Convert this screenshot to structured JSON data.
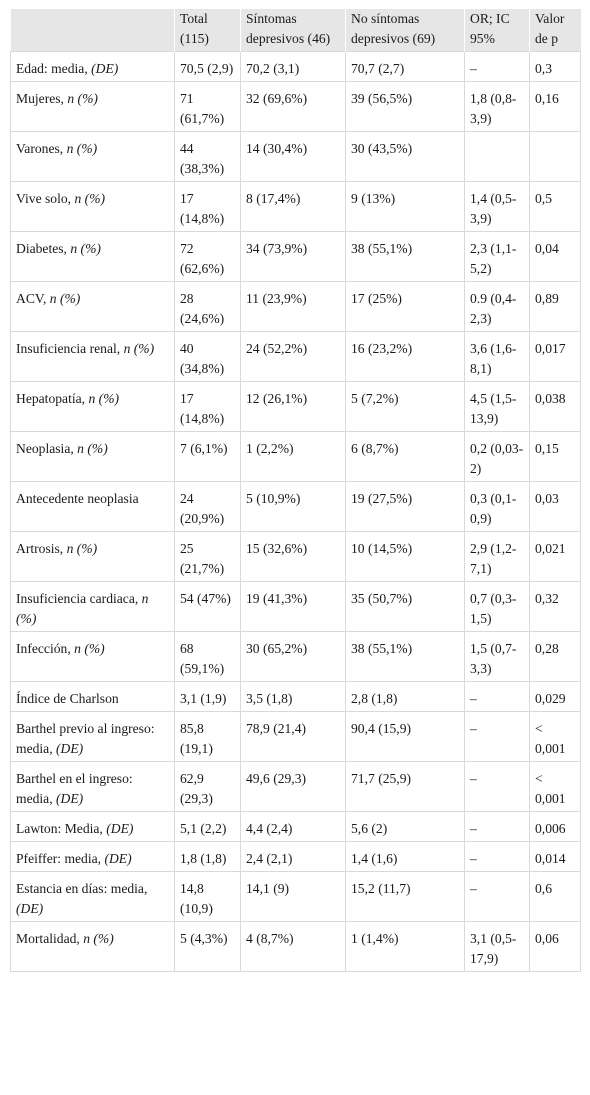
{
  "table": {
    "headers": [
      "",
      "Total (115)",
      "Síntomas depresivos (46)",
      "No síntomas depresivos (69)",
      "OR; IC 95%",
      "Valor de p"
    ],
    "rows": [
      {
        "label": "Edad: media, ",
        "label_em": "(DE)",
        "cells": [
          "70,5 (2,9)",
          "70,2 (3,1)",
          "70,7 (2,7)",
          "–",
          "0,3"
        ]
      },
      {
        "label": "Mujeres, ",
        "label_em": "n (%)",
        "cells": [
          "71 (61,7%)",
          "32 (69,6%)",
          "39 (56,5%)",
          "1,8 (0,8-3,9)",
          "0,16"
        ]
      },
      {
        "label": "Varones, ",
        "label_em": "n (%)",
        "cells": [
          "44 (38,3%)",
          "14 (30,4%)",
          "30 (43,5%)",
          "",
          ""
        ]
      },
      {
        "label": "Vive solo, ",
        "label_em": "n (%)",
        "cells": [
          "17 (14,8%)",
          "8 (17,4%)",
          "9 (13%)",
          "1,4 (0,5-3,9)",
          "0,5"
        ]
      },
      {
        "label": "Diabetes, ",
        "label_em": "n (%)",
        "cells": [
          "72 (62,6%)",
          "34 (73,9%)",
          "38 (55,1%)",
          "2,3 (1,1-5,2)",
          "0,04"
        ]
      },
      {
        "label": "ACV, ",
        "label_em": "n (%)",
        "cells": [
          "28 (24,6%)",
          "11 (23,9%)",
          "17 (25%)",
          "0.9 (0,4-2,3)",
          "0,89"
        ]
      },
      {
        "label": "Insuficiencia renal, ",
        "label_em": "n (%)",
        "cells": [
          "40 (34,8%)",
          "24 (52,2%)",
          "16 (23,2%)",
          "3,6 (1,6-8,1)",
          "0,017"
        ]
      },
      {
        "label": "Hepatopatía, ",
        "label_em": "n (%)",
        "cells": [
          "17 (14,8%)",
          "12 (26,1%)",
          "5 (7,2%)",
          "4,5 (1,5-13,9)",
          "0,038"
        ]
      },
      {
        "label": "Neoplasia, ",
        "label_em": "n (%)",
        "cells": [
          "7 (6,1%)",
          "1 (2,2%)",
          "6 (8,7%)",
          "0,2 (0,03-2)",
          "0,15"
        ]
      },
      {
        "label": "Antecedente neoplasia",
        "label_em": "",
        "cells": [
          "24 (20,9%)",
          "5 (10,9%)",
          "19 (27,5%)",
          "0,3 (0,1-0,9)",
          "0,03"
        ]
      },
      {
        "label": "Artrosis, ",
        "label_em": "n (%)",
        "cells": [
          "25 (21,7%)",
          "15 (32,6%)",
          "10 (14,5%)",
          "2,9 (1,2-7,1)",
          "0,021"
        ]
      },
      {
        "label": "Insuficiencia cardiaca, ",
        "label_em": "n (%)",
        "cells": [
          "54 (47%)",
          "19 (41,3%)",
          "35 (50,7%)",
          "0,7 (0,3-1,5)",
          "0,32"
        ]
      },
      {
        "label": "Infección, ",
        "label_em": "n (%)",
        "cells": [
          "68 (59,1%)",
          "30 (65,2%)",
          "38 (55,1%)",
          "1,5 (0,7-3,3)",
          "0,28"
        ]
      },
      {
        "label": "Índice de Charlson",
        "label_em": "",
        "cells": [
          "3,1 (1,9)",
          "3,5 (1,8)",
          "2,8 (1,8)",
          "–",
          "0,029"
        ]
      },
      {
        "label": "Barthel previo al ingreso: media, ",
        "label_em": "(DE)",
        "cells": [
          "85,8 (19,1)",
          "78,9 (21,4)",
          "90,4 (15,9)",
          "–",
          "< 0,001"
        ]
      },
      {
        "label": "Barthel en el ingreso: media, ",
        "label_em": "(DE)",
        "cells": [
          "62,9 (29,3)",
          "49,6 (29,3)",
          "71,7 (25,9)",
          "–",
          "< 0,001"
        ]
      },
      {
        "label": "Lawton: Media, ",
        "label_em": "(DE)",
        "cells": [
          "5,1 (2,2)",
          "4,4 (2,4)",
          "5,6 (2)",
          "–",
          "0,006"
        ]
      },
      {
        "label": "Pfeiffer: media, ",
        "label_em": "(DE)",
        "cells": [
          "1,8 (1,8)",
          "2,4 (2,1)",
          "1,4 (1,6)",
          "–",
          "0,014"
        ]
      },
      {
        "label": "Estancia en días: media, ",
        "label_em": "(DE)",
        "cells": [
          "14,8 (10,9)",
          "14,1 (9)",
          "15,2 (11,7)",
          "–",
          "0,6"
        ]
      },
      {
        "label": "Mortalidad, ",
        "label_em": "n (%)",
        "cells": [
          "5 (4,3%)",
          "4 (8,7%)",
          "1 (1,4%)",
          "3,1 (0,5-17,9)",
          "0,06"
        ]
      }
    ]
  }
}
